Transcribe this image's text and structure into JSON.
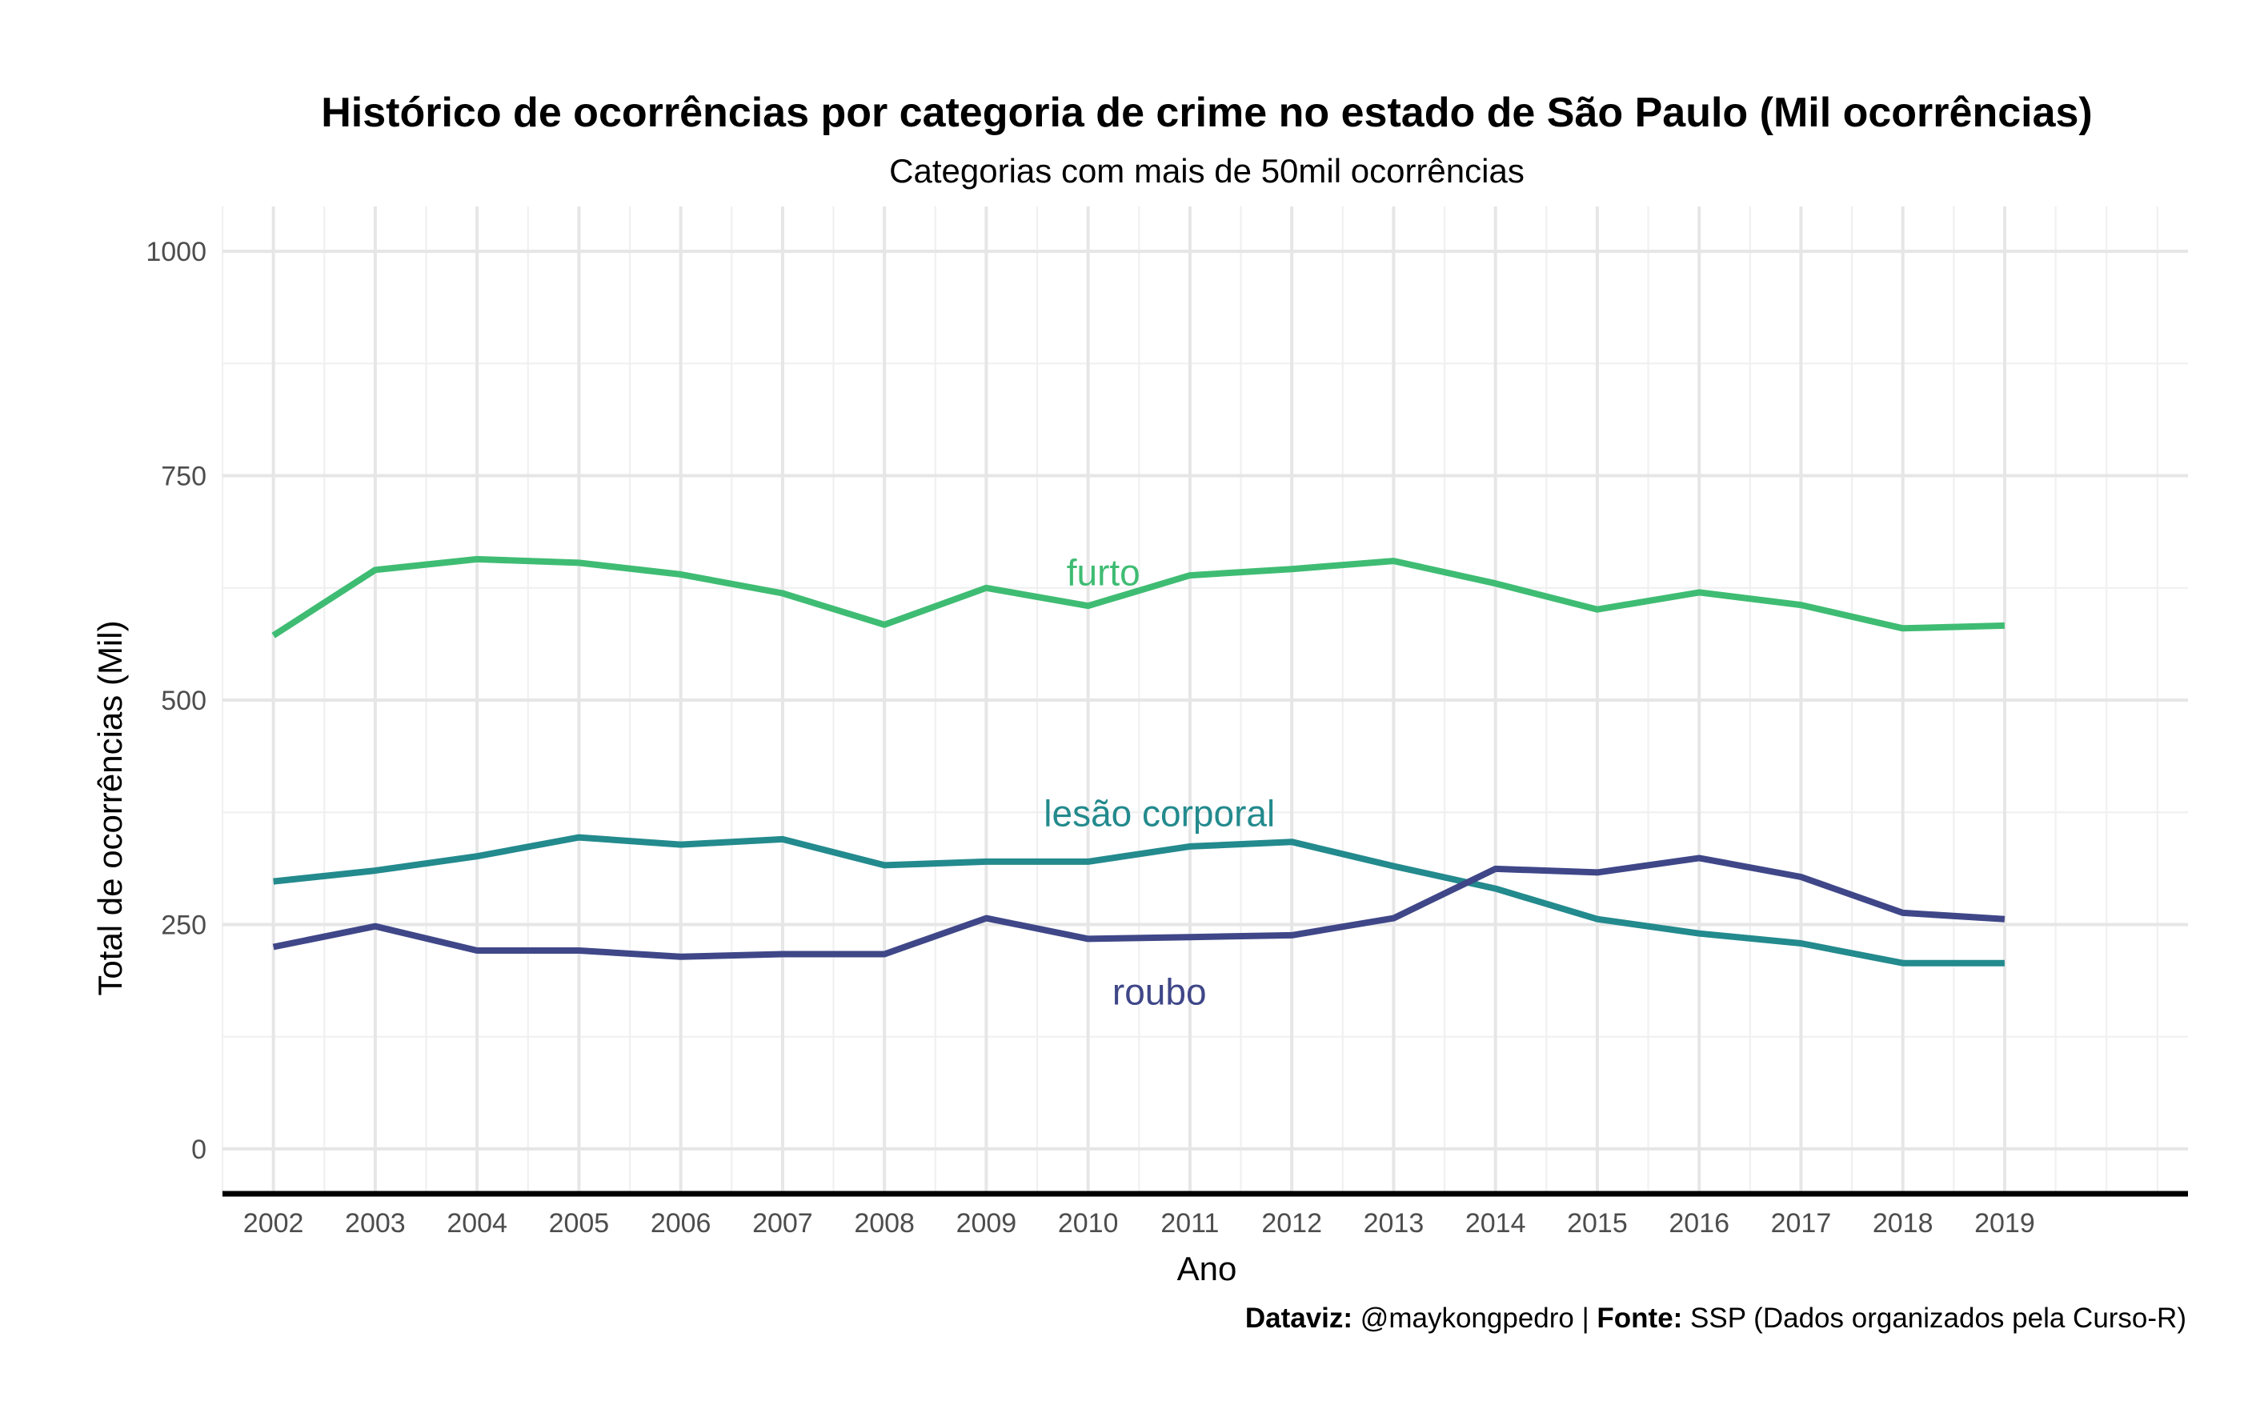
{
  "chart_data": {
    "type": "line",
    "title": "Histórico de ocorrências por categoria de crime no estado de São Paulo (Mil ocorrências)",
    "subtitle": "Categorias com mais de 50mil ocorrências",
    "xlabel": "Ano",
    "ylabel": "Total de ocorrências (Mil)",
    "x": [
      2002,
      2003,
      2004,
      2005,
      2006,
      2007,
      2008,
      2009,
      2010,
      2011,
      2012,
      2013,
      2014,
      2015,
      2016,
      2017,
      2018,
      2019
    ],
    "xlim": [
      2001.5,
      2020.8
    ],
    "ylim": [
      -50,
      1050
    ],
    "y_ticks": [
      0,
      250,
      500,
      750,
      1000
    ],
    "grid": true,
    "legend": "none (direct labels)",
    "series": [
      {
        "name": "furto",
        "color": "#3fbc73",
        "values": [
          572,
          645,
          657,
          653,
          640,
          619,
          584,
          625,
          605,
          639,
          646,
          655,
          630,
          601,
          620,
          606,
          580,
          583
        ]
      },
      {
        "name": "lesão corporal",
        "color": "#238a8d",
        "values": [
          298,
          310,
          326,
          347,
          339,
          345,
          316,
          320,
          320,
          337,
          342,
          315,
          290,
          256,
          240,
          229,
          207,
          207
        ]
      },
      {
        "name": "roubo",
        "color": "#3f4788",
        "values": [
          225,
          248,
          221,
          221,
          214,
          217,
          217,
          257,
          234,
          236,
          238,
          257,
          312,
          308,
          324,
          303,
          263,
          256
        ]
      }
    ],
    "annotations": [
      {
        "text": "furto",
        "x": 2010.15,
        "y": 642,
        "color": "#3fbc73"
      },
      {
        "text": "lesão corporal",
        "x": 2010.7,
        "y": 374,
        "color": "#238a8d"
      },
      {
        "text": "roubo",
        "x": 2010.7,
        "y": 175,
        "color": "#3f4788"
      }
    ],
    "caption": {
      "dataviz_label": "Dataviz:",
      "dataviz_value": " @maykongpedro | ",
      "fonte_label": "Fonte:",
      "fonte_value": " SSP (Dados organizados pela Curso-R)"
    }
  }
}
